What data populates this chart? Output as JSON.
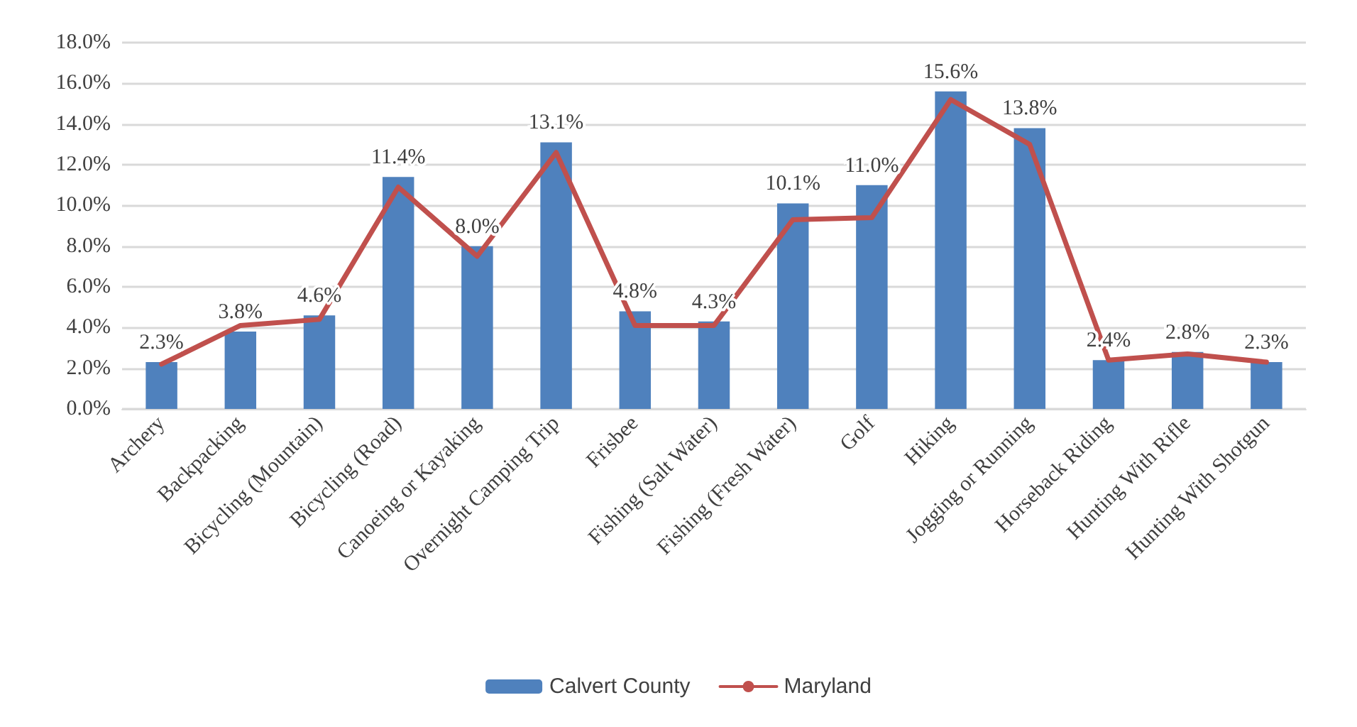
{
  "chart_data": {
    "type": "bar",
    "categories": [
      "Archery",
      "Backpacking",
      "Bicycling (Mountain)",
      "Bicycling (Road)",
      "Canoeing or Kayaking",
      "Overnight Camping Trip",
      "Frisbee",
      "Fishing (Salt Water)",
      "Fishing (Fresh Water)",
      "Golf",
      "Hiking",
      "Jogging or Running",
      "Horseback Riding",
      "Hunting With Rifle",
      "Hunting With Shotgun"
    ],
    "series": [
      {
        "name": "Calvert County",
        "color": "#4f81bd",
        "values": [
          2.3,
          3.8,
          4.6,
          11.4,
          8.0,
          13.1,
          4.8,
          4.3,
          10.1,
          11.0,
          15.6,
          13.8,
          2.4,
          2.8,
          2.3
        ],
        "value_labels": [
          "2.3%",
          "3.8%",
          "4.6%",
          "11.4%",
          "8.0%",
          "13.1%",
          "4.8%",
          "4.3%",
          "10.1%",
          "11.0%",
          "15.6%",
          "13.8%",
          "2.4%",
          "2.8%",
          "2.3%"
        ]
      },
      {
        "name": "Maryland",
        "type": "line",
        "color": "#c0504d",
        "values": [
          2.2,
          4.1,
          4.4,
          10.9,
          7.5,
          12.6,
          4.1,
          4.1,
          9.3,
          9.4,
          15.2,
          13.0,
          2.4,
          2.7,
          2.3
        ]
      }
    ],
    "ylim": [
      0,
      18
    ],
    "yticks": [
      {
        "value": 0,
        "label": "0.0%"
      },
      {
        "value": 2,
        "label": "2.0%"
      },
      {
        "value": 4,
        "label": "4.0%"
      },
      {
        "value": 6,
        "label": "6.0%"
      },
      {
        "value": 8,
        "label": "8.0%"
      },
      {
        "value": 10,
        "label": "10.0%"
      },
      {
        "value": 12,
        "label": "12.0%"
      },
      {
        "value": 14,
        "label": "14.0%"
      },
      {
        "value": 16,
        "label": "16.0%"
      },
      {
        "value": 18,
        "label": "18.0%"
      }
    ],
    "grid": "y",
    "legend": "bottom",
    "marker": "none",
    "line_style": "solid"
  }
}
